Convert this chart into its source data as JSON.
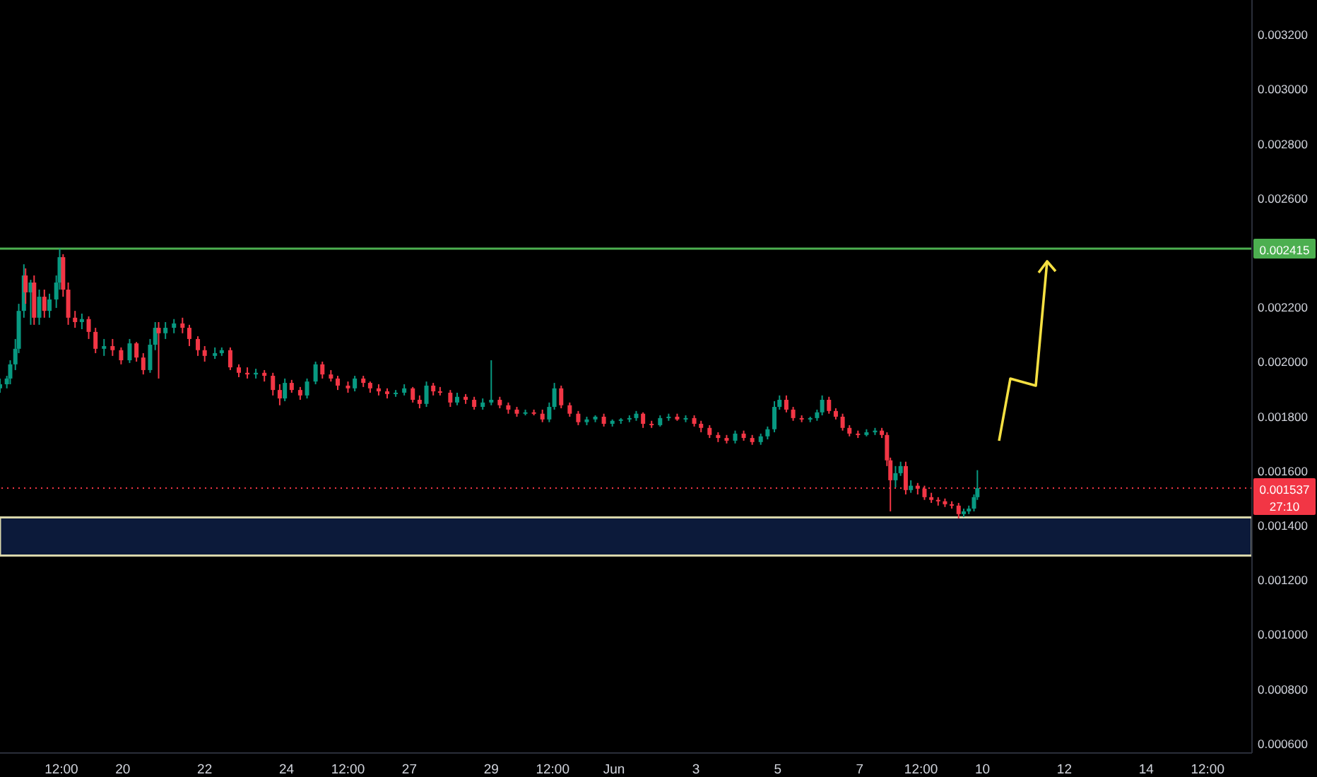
{
  "chart_data": {
    "type": "candlestick",
    "x": [
      "--05-17T00:00",
      "--05-17T04:00",
      "--05-17T06:00",
      "--05-17T09:00",
      "--05-17T11:00",
      "--05-17T14:00",
      "--05-17T15:00",
      "--05-17T18:00",
      "--05-17T20:00",
      "--05-17T23:00",
      "--05-18T02:00",
      "--05-18T05:00",
      "--05-18T09:00",
      "--05-18T11:00",
      "--05-18T13:00",
      "--05-18T16:00",
      "--05-18T20:00",
      "--05-19T00:00",
      "--05-19T04:00",
      "--05-19T08:00",
      "--05-19T13:00",
      "--05-19T18:00",
      "--05-19T23:00",
      "--05-20T04:00",
      "--05-20T08:00",
      "--05-20T12:00",
      "--05-20T16:00",
      "--05-20T19:00",
      "--05-20T21:00",
      "--05-21T01:00",
      "--05-21T06:00",
      "--05-21T11:00",
      "--05-21T15:00",
      "--05-21T20:00",
      "--05-22T00:00",
      "--05-22T06:00",
      "--05-22T10:00",
      "--05-22T15:00",
      "--05-22T20:00",
      "--05-23T01:00",
      "--05-23T06:00",
      "--05-23T11:00",
      "--05-23T16:00",
      "--05-23T20:00",
      "--05-23T23:00",
      "--05-24T03:00",
      "--05-24T08:00",
      "--05-24T12:00",
      "--05-24T17:00",
      "--05-24T21:00",
      "--05-25T02:00",
      "--05-25T06:00",
      "--05-25T12:00",
      "--05-25T16:00",
      "--05-25T21:00",
      "--05-26T01:00",
      "--05-26T06:00",
      "--05-26T11:00",
      "--05-26T16:00",
      "--05-26T21:00",
      "--05-27T02:00",
      "--05-27T06:00",
      "--05-27T10:00",
      "--05-27T14:00",
      "--05-27T18:00",
      "--05-28T00:00",
      "--05-28T04:00",
      "--05-28T09:00",
      "--05-28T14:00",
      "--05-28T19:00",
      "--05-29T00:00",
      "--05-29T05:00",
      "--05-29T10:00",
      "--05-29T15:00",
      "--05-29T20:00",
      "--05-30T01:00",
      "--05-30T06:00",
      "--05-30T10:00",
      "--05-30T13:00",
      "--05-30T17:00",
      "--05-30T22:00",
      "--05-31T03:00",
      "--05-31T08:00",
      "--05-31T13:00",
      "--05-31T18:00",
      "--05-31T23:00",
      "--06-01T04:00",
      "--06-01T09:00",
      "--06-01T13:00",
      "--06-01T17:00",
      "--06-01T22:00",
      "--06-02T03:00",
      "--06-02T08:00",
      "--06-02T13:00",
      "--06-02T18:00",
      "--06-02T23:00",
      "--06-03T03:00",
      "--06-03T08:00",
      "--06-03T13:00",
      "--06-03T18:00",
      "--06-03T23:00",
      "--06-04T04:00",
      "--06-04T09:00",
      "--06-04T14:00",
      "--06-04T18:00",
      "--06-04T22:00",
      "--06-05T01:00",
      "--06-05T05:00",
      "--06-05T09:00",
      "--06-05T14:00",
      "--06-05T19:00",
      "--06-05T23:00",
      "--06-06T02:00",
      "--06-06T06:00",
      "--06-06T10:00",
      "--06-06T14:00",
      "--06-06T18:00",
      "--06-06T23:00",
      "--06-07T04:00",
      "--06-07T09:00",
      "--06-07T13:00",
      "--06-07T16:00",
      "--06-07T18:00",
      "--06-07T21:00",
      "--06-08T00:00",
      "--06-08T03:00",
      "--06-08T06:00",
      "--06-08T10:00",
      "--06-08T14:00",
      "--06-08T18:00",
      "--06-08T22:00",
      "--06-09T02:00",
      "--06-09T06:00",
      "--06-09T10:00",
      "--06-09T13:00",
      "--06-09T16:00",
      "--06-09T19:00",
      "--06-09T21:00"
    ],
    "ohlc": [
      [
        0.001903,
        0.001939,
        0.001887,
        0.001918
      ],
      [
        0.001918,
        0.001949,
        0.001903,
        0.001939
      ],
      [
        0.001939,
        0.002006,
        0.001918,
        0.001991
      ],
      [
        0.001991,
        0.002084,
        0.00197,
        0.002048
      ],
      [
        0.002048,
        0.002213,
        0.002032,
        0.002187
      ],
      [
        0.002187,
        0.002358,
        0.002162,
        0.002317
      ],
      [
        0.002317,
        0.002343,
        0.002213,
        0.002255
      ],
      [
        0.002255,
        0.002301,
        0.002136,
        0.002291
      ],
      [
        0.002291,
        0.002317,
        0.002136,
        0.002162
      ],
      [
        0.002162,
        0.002265,
        0.002136,
        0.002239
      ],
      [
        0.002239,
        0.002265,
        0.002162,
        0.002187
      ],
      [
        0.002187,
        0.00225,
        0.002162,
        0.002229
      ],
      [
        0.002229,
        0.002317,
        0.002198,
        0.002291
      ],
      [
        0.002291,
        0.002415,
        0.002265,
        0.002384
      ],
      [
        0.002384,
        0.002395,
        0.002239,
        0.002265
      ],
      [
        0.002265,
        0.002291,
        0.002136,
        0.002162
      ],
      [
        0.002162,
        0.002187,
        0.002125,
        0.002146
      ],
      [
        0.002146,
        0.002177,
        0.00212,
        0.002157
      ],
      [
        0.002157,
        0.002167,
        0.002084,
        0.00211
      ],
      [
        0.00211,
        0.002125,
        0.002032,
        0.002048
      ],
      [
        0.002048,
        0.002084,
        0.002022,
        0.002058
      ],
      [
        0.002058,
        0.002084,
        0.002022,
        0.002043
      ],
      [
        0.002043,
        0.002053,
        0.001991,
        0.002006
      ],
      [
        0.002006,
        0.002084,
        0.001996,
        0.002068
      ],
      [
        0.002068,
        0.002073,
        0.002001,
        0.002016
      ],
      [
        0.002016,
        0.002032,
        0.001954,
        0.00197
      ],
      [
        0.00197,
        0.002084,
        0.00196,
        0.002063
      ],
      [
        0.002063,
        0.002146,
        0.002043,
        0.002125
      ],
      [
        0.002125,
        0.002146,
        0.001939,
        0.002105
      ],
      [
        0.002105,
        0.002146,
        0.002084,
        0.002125
      ],
      [
        0.002125,
        0.002157,
        0.002105,
        0.002141
      ],
      [
        0.002141,
        0.002162,
        0.002105,
        0.002125
      ],
      [
        0.002125,
        0.002136,
        0.002058,
        0.002084
      ],
      [
        0.002084,
        0.002094,
        0.002022,
        0.002043
      ],
      [
        0.002043,
        0.002058,
        0.002001,
        0.002022
      ],
      [
        0.002022,
        0.002053,
        0.002011,
        0.002032
      ],
      [
        0.002032,
        0.002053,
        0.002022,
        0.002043
      ],
      [
        0.002043,
        0.002053,
        0.00197,
        0.00198
      ],
      [
        0.00198,
        0.001991,
        0.001944,
        0.00196
      ],
      [
        0.00196,
        0.00198,
        0.001939,
        0.001954
      ],
      [
        0.001954,
        0.001975,
        0.001939,
        0.00196
      ],
      [
        0.00196,
        0.00197,
        0.001928,
        0.001949
      ],
      [
        0.001949,
        0.00196,
        0.001877,
        0.001897
      ],
      [
        0.001897,
        0.001918,
        0.001841,
        0.001866
      ],
      [
        0.001866,
        0.001939,
        0.001856,
        0.001923
      ],
      [
        0.001923,
        0.001934,
        0.001887,
        0.001897
      ],
      [
        0.001897,
        0.001908,
        0.001861,
        0.001877
      ],
      [
        0.001877,
        0.001939,
        0.001866,
        0.001928
      ],
      [
        0.001928,
        0.002001,
        0.001918,
        0.001991
      ],
      [
        0.001991,
        0.002001,
        0.001939,
        0.001954
      ],
      [
        0.001954,
        0.00197,
        0.001928,
        0.001939
      ],
      [
        0.001939,
        0.001949,
        0.001897,
        0.001913
      ],
      [
        0.001913,
        0.001928,
        0.001887,
        0.001903
      ],
      [
        0.001903,
        0.001949,
        0.001892,
        0.001939
      ],
      [
        0.001939,
        0.001949,
        0.001908,
        0.001923
      ],
      [
        0.001923,
        0.001928,
        0.001887,
        0.001903
      ],
      [
        0.001903,
        0.001918,
        0.001877,
        0.001892
      ],
      [
        0.001892,
        0.001903,
        0.001866,
        0.001882
      ],
      [
        0.001882,
        0.001897,
        0.001872,
        0.001887
      ],
      [
        0.001887,
        0.001918,
        0.001877,
        0.001903
      ],
      [
        0.001903,
        0.001908,
        0.001851,
        0.001861
      ],
      [
        0.001861,
        0.001877,
        0.00183,
        0.001846
      ],
      [
        0.001846,
        0.001928,
        0.001835,
        0.001913
      ],
      [
        0.001913,
        0.001923,
        0.001877,
        0.001892
      ],
      [
        0.001892,
        0.001908,
        0.001877,
        0.001887
      ],
      [
        0.001887,
        0.001897,
        0.001835,
        0.001851
      ],
      [
        0.001851,
        0.001887,
        0.001841,
        0.001872
      ],
      [
        0.001872,
        0.001882,
        0.001846,
        0.001861
      ],
      [
        0.001861,
        0.001872,
        0.001825,
        0.001835
      ],
      [
        0.001835,
        0.001866,
        0.001825,
        0.001851
      ],
      [
        0.001851,
        0.002006,
        0.001841,
        0.001861
      ],
      [
        0.001861,
        0.001872,
        0.00183,
        0.001841
      ],
      [
        0.001841,
        0.001851,
        0.00181,
        0.001825
      ],
      [
        0.001825,
        0.001835,
        0.001799,
        0.00181
      ],
      [
        0.00181,
        0.001825,
        0.001804,
        0.001815
      ],
      [
        0.001815,
        0.001825,
        0.001804,
        0.00181
      ],
      [
        0.00181,
        0.001825,
        0.001779,
        0.001789
      ],
      [
        0.001789,
        0.001851,
        0.001779,
        0.001835
      ],
      [
        0.001835,
        0.001923,
        0.001825,
        0.001903
      ],
      [
        0.001903,
        0.001913,
        0.00183,
        0.001841
      ],
      [
        0.001841,
        0.001851,
        0.001799,
        0.00181
      ],
      [
        0.00181,
        0.00182,
        0.001768,
        0.001779
      ],
      [
        0.001779,
        0.001799,
        0.001768,
        0.001789
      ],
      [
        0.001789,
        0.001804,
        0.001779,
        0.001799
      ],
      [
        0.001799,
        0.00181,
        0.001763,
        0.001773
      ],
      [
        0.001773,
        0.001789,
        0.001763,
        0.001784
      ],
      [
        0.001784,
        0.001794,
        0.001773,
        0.001789
      ],
      [
        0.001789,
        0.001804,
        0.001779,
        0.001794
      ],
      [
        0.001794,
        0.00182,
        0.001784,
        0.00181
      ],
      [
        0.00181,
        0.001815,
        0.001758,
        0.001773
      ],
      [
        0.001773,
        0.001784,
        0.001758,
        0.001768
      ],
      [
        0.001768,
        0.001804,
        0.001763,
        0.001794
      ],
      [
        0.001794,
        0.00181,
        0.001784,
        0.001799
      ],
      [
        0.001799,
        0.00181,
        0.001784,
        0.001789
      ],
      [
        0.001789,
        0.001804,
        0.001779,
        0.001794
      ],
      [
        0.001794,
        0.001804,
        0.001763,
        0.001773
      ],
      [
        0.001773,
        0.001784,
        0.001742,
        0.001758
      ],
      [
        0.001758,
        0.001768,
        0.001721,
        0.001732
      ],
      [
        0.001732,
        0.001742,
        0.001706,
        0.001721
      ],
      [
        0.001721,
        0.001732,
        0.001701,
        0.001711
      ],
      [
        0.001711,
        0.001748,
        0.001701,
        0.001737
      ],
      [
        0.001737,
        0.001748,
        0.001711,
        0.001721
      ],
      [
        0.001721,
        0.001732,
        0.001696,
        0.001706
      ],
      [
        0.001706,
        0.001737,
        0.001696,
        0.001727
      ],
      [
        0.001727,
        0.001763,
        0.001716,
        0.001753
      ],
      [
        0.001753,
        0.001856,
        0.001742,
        0.001835
      ],
      [
        0.001835,
        0.001877,
        0.001825,
        0.001861
      ],
      [
        0.001861,
        0.001877,
        0.001815,
        0.001825
      ],
      [
        0.001825,
        0.001835,
        0.001784,
        0.001794
      ],
      [
        0.001794,
        0.001804,
        0.001779,
        0.001789
      ],
      [
        0.001789,
        0.001799,
        0.001779,
        0.001794
      ],
      [
        0.001794,
        0.001825,
        0.001784,
        0.001815
      ],
      [
        0.001815,
        0.001877,
        0.001804,
        0.001861
      ],
      [
        0.001861,
        0.001872,
        0.00181,
        0.00182
      ],
      [
        0.00182,
        0.00183,
        0.001789,
        0.001799
      ],
      [
        0.001799,
        0.00181,
        0.001748,
        0.001758
      ],
      [
        0.001758,
        0.001768,
        0.001727,
        0.001737
      ],
      [
        0.001737,
        0.001748,
        0.001721,
        0.001732
      ],
      [
        0.001732,
        0.001753,
        0.001727,
        0.001742
      ],
      [
        0.001742,
        0.001758,
        0.001732,
        0.001748
      ],
      [
        0.001748,
        0.001758,
        0.001721,
        0.001732
      ],
      [
        0.001732,
        0.001742,
        0.001618,
        0.001639
      ],
      [
        0.001639,
        0.001649,
        0.001452,
        0.001566
      ],
      [
        0.001566,
        0.001618,
        0.00154,
        0.001592
      ],
      [
        0.001592,
        0.001634,
        0.001582,
        0.001618
      ],
      [
        0.001618,
        0.001634,
        0.001514,
        0.00153
      ],
      [
        0.00153,
        0.001566,
        0.00152,
        0.001546
      ],
      [
        0.001546,
        0.001556,
        0.001514,
        0.001535
      ],
      [
        0.001535,
        0.001546,
        0.001494,
        0.001504
      ],
      [
        0.001504,
        0.00152,
        0.001483,
        0.001494
      ],
      [
        0.001494,
        0.001504,
        0.001473,
        0.001489
      ],
      [
        0.001489,
        0.001499,
        0.001468,
        0.001478
      ],
      [
        0.001478,
        0.001489,
        0.001462,
        0.001473
      ],
      [
        0.001473,
        0.001483,
        0.001426,
        0.001442
      ],
      [
        0.001442,
        0.001462,
        0.001431,
        0.001452
      ],
      [
        0.001452,
        0.001473,
        0.001442,
        0.001462
      ],
      [
        0.001462,
        0.001514,
        0.001452,
        0.001504
      ],
      [
        0.001504,
        0.001603,
        0.001494,
        0.001537
      ]
    ],
    "xlim": [
      "--05-17T00:00",
      "--06-16T14:00"
    ],
    "xticks": [
      {
        "value": "--05-18T12:00",
        "label": "12:00"
      },
      {
        "value": "--05-20",
        "label": "20"
      },
      {
        "value": "--05-22",
        "label": "22"
      },
      {
        "value": "--05-24",
        "label": "24"
      },
      {
        "value": "--05-25T12:00",
        "label": "12:00"
      },
      {
        "value": "--05-27",
        "label": "27"
      },
      {
        "value": "--05-29",
        "label": "29"
      },
      {
        "value": "--05-30T12:00",
        "label": "12:00"
      },
      {
        "value": "--06-01",
        "label": "Jun"
      },
      {
        "value": "--06-03",
        "label": "3"
      },
      {
        "value": "--06-05",
        "label": "5"
      },
      {
        "value": "--06-07",
        "label": "7"
      },
      {
        "value": "--06-08T12:00",
        "label": "12:00"
      },
      {
        "value": "--06-10",
        "label": "10"
      },
      {
        "value": "--06-12",
        "label": "12"
      },
      {
        "value": "--06-14",
        "label": "14"
      },
      {
        "value": "--06-15T12:00",
        "label": "12:00"
      }
    ],
    "ylim": [
      0.000566,
      0.003327
    ],
    "yticks": [
      {
        "value": 0.0006,
        "label": "0.000600"
      },
      {
        "value": 0.0008,
        "label": "0.000800"
      },
      {
        "value": 0.001,
        "label": "0.001000"
      },
      {
        "value": 0.0012,
        "label": "0.001200"
      },
      {
        "value": 0.0014,
        "label": "0.001400"
      },
      {
        "value": 0.0016,
        "label": "0.001600"
      },
      {
        "value": 0.0018,
        "label": "0.001800"
      },
      {
        "value": 0.002,
        "label": "0.002000"
      },
      {
        "value": 0.0022,
        "label": "0.002200"
      },
      {
        "value": 0.0026,
        "label": "0.002600"
      },
      {
        "value": 0.0028,
        "label": "0.002800"
      },
      {
        "value": 0.003,
        "label": "0.003000"
      },
      {
        "value": 0.0032,
        "label": "0.003200"
      }
    ],
    "ref_lines": [
      {
        "axis": "y",
        "value": 0.002415,
        "label": "0.002415",
        "color": "#4caf50",
        "line_style": "solid"
      },
      {
        "axis": "y",
        "value": 0.001537,
        "label": "0.001537",
        "color": "#f23645",
        "line_style": "dotted"
      }
    ],
    "bands": [
      {
        "axis": "y",
        "from": 0.00129,
        "to": 0.00143,
        "color": "#0c1a3a"
      }
    ],
    "annotations": [
      "27:10"
    ]
  }
}
